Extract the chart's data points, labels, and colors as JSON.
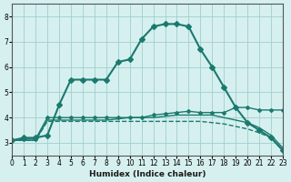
{
  "xlabel": "Humidex (Indice chaleur)",
  "ylabel": "",
  "bg_color": "#d6f0ef",
  "grid_color": "#a0cece",
  "line_color": "#1a7a6e",
  "xlim": [
    0,
    23
  ],
  "ylim": [
    2.5,
    8.5
  ],
  "yticks": [
    3,
    4,
    5,
    6,
    7,
    8
  ],
  "xticks": [
    0,
    1,
    2,
    3,
    4,
    5,
    6,
    7,
    8,
    9,
    10,
    11,
    12,
    13,
    14,
    15,
    16,
    17,
    18,
    19,
    20,
    21,
    22,
    23
  ],
  "series": [
    {
      "x": [
        0,
        1,
        2,
        3,
        4,
        5,
        6,
        7,
        8,
        9,
        10,
        11,
        12,
        13,
        14,
        15,
        16,
        17,
        18,
        19,
        20,
        21,
        22,
        23
      ],
      "y": [
        3.1,
        3.2,
        3.2,
        3.3,
        4.5,
        5.5,
        5.5,
        5.5,
        5.5,
        6.2,
        6.3,
        7.1,
        7.6,
        7.7,
        7.7,
        7.6,
        6.7,
        6.0,
        5.2,
        4.4,
        3.8,
        3.5,
        3.2,
        2.7
      ],
      "marker": "D",
      "markersize": 3,
      "linewidth": 1.5,
      "linestyle": "-"
    },
    {
      "x": [
        0,
        1,
        2,
        3,
        4,
        5,
        6,
        7,
        8,
        9,
        10,
        11,
        12,
        13,
        14,
        15,
        16,
        17,
        18,
        19,
        20,
        21,
        22,
        23
      ],
      "y": [
        3.1,
        3.15,
        3.15,
        4.0,
        4.0,
        4.0,
        4.0,
        4.0,
        4.0,
        4.0,
        4.0,
        4.0,
        4.1,
        4.15,
        4.2,
        4.25,
        4.2,
        4.2,
        4.2,
        4.4,
        4.4,
        4.3,
        4.3,
        4.3
      ],
      "marker": "D",
      "markersize": 2,
      "linewidth": 1.0,
      "linestyle": "-"
    },
    {
      "x": [
        0,
        1,
        2,
        3,
        4,
        5,
        6,
        7,
        8,
        9,
        10,
        11,
        12,
        13,
        14,
        15,
        16,
        17,
        18,
        19,
        20,
        21,
        22,
        23
      ],
      "y": [
        3.1,
        3.1,
        3.1,
        3.9,
        3.9,
        3.9,
        3.9,
        3.9,
        3.9,
        3.95,
        4.0,
        4.0,
        4.0,
        4.05,
        4.1,
        4.1,
        4.1,
        4.1,
        4.0,
        3.9,
        3.8,
        3.6,
        3.3,
        2.8
      ],
      "marker": null,
      "markersize": 0,
      "linewidth": 1.0,
      "linestyle": "-"
    },
    {
      "x": [
        0,
        1,
        2,
        3,
        4,
        5,
        6,
        7,
        8,
        9,
        10,
        11,
        12,
        13,
        14,
        15,
        16,
        17,
        18,
        19,
        20,
        21,
        22,
        23
      ],
      "y": [
        3.1,
        3.1,
        3.1,
        3.85,
        3.85,
        3.85,
        3.85,
        3.85,
        3.85,
        3.85,
        3.85,
        3.85,
        3.85,
        3.85,
        3.85,
        3.85,
        3.85,
        3.8,
        3.75,
        3.65,
        3.55,
        3.4,
        3.2,
        2.7
      ],
      "marker": null,
      "markersize": 0,
      "linewidth": 1.0,
      "linestyle": "--"
    }
  ]
}
